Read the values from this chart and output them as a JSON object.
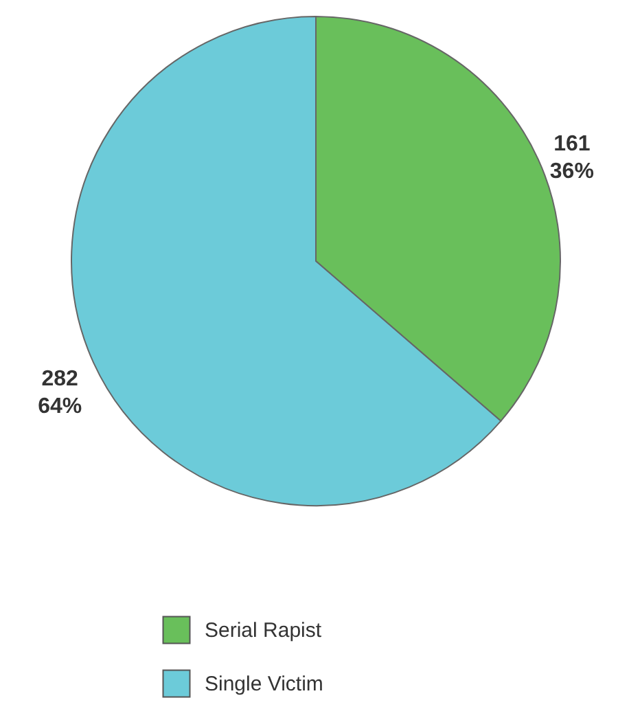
{
  "chart_data": {
    "type": "pie",
    "categories": [
      "Serial Rapist",
      "Single Victim"
    ],
    "values": [
      161,
      282
    ],
    "colors": [
      "#69bf5b",
      "#6ccbd9"
    ],
    "value_labels": [
      "161\n36%",
      "282\n64%"
    ],
    "legend": "bottom"
  }
}
